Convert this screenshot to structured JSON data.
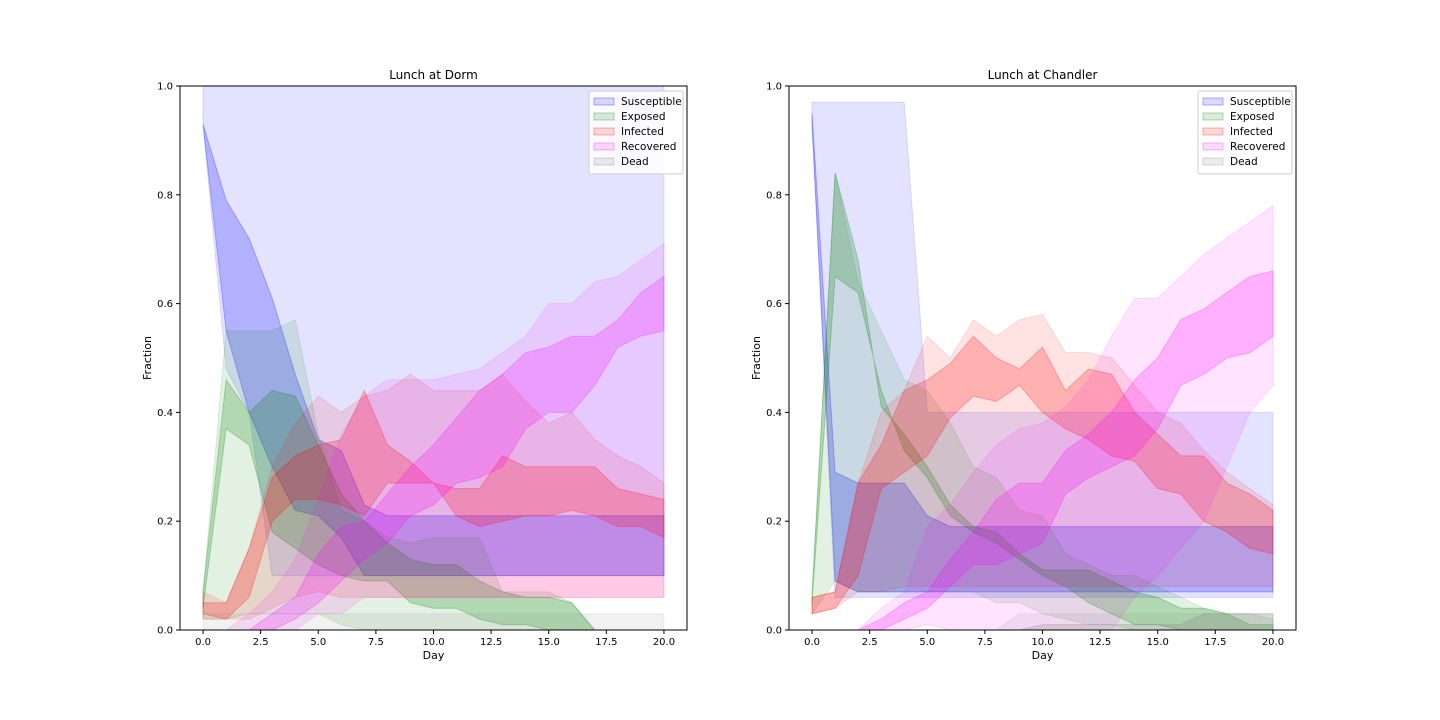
{
  "chart_data": [
    {
      "type": "area",
      "title": "Lunch at Dorm",
      "xlabel": "Day",
      "ylabel": "Fraction",
      "xlim": [
        -1,
        21
      ],
      "ylim": [
        0,
        1
      ],
      "xticks": [
        0,
        2.5,
        5,
        7.5,
        10,
        12.5,
        15,
        17.5,
        20
      ],
      "xtick_labels": [
        "0.0",
        "2.5",
        "5.0",
        "7.5",
        "10.0",
        "12.5",
        "15.0",
        "17.5",
        "20.0"
      ],
      "yticks": [
        0,
        0.2,
        0.4,
        0.6,
        0.8,
        1.0
      ],
      "ytick_labels": [
        "0.0",
        "0.2",
        "0.4",
        "0.6",
        "0.8",
        "1.0"
      ],
      "legend_position": "top-right",
      "x": [
        0,
        1,
        2,
        3,
        4,
        5,
        6,
        7,
        8,
        9,
        10,
        11,
        12,
        13,
        14,
        15,
        16,
        17,
        18,
        19,
        20
      ],
      "series": [
        {
          "name": "Susceptible",
          "color": "#0000ff",
          "outer_high": [
            1,
            1,
            1,
            1,
            1,
            1,
            1,
            1,
            1,
            1,
            1,
            1,
            1,
            1,
            1,
            1,
            1,
            1,
            1,
            1,
            1
          ],
          "outer_low": [
            0.93,
            0.48,
            0.4,
            0.1,
            0.1,
            0.1,
            0.1,
            0.1,
            0.1,
            0.1,
            0.1,
            0.1,
            0.1,
            0.1,
            0.1,
            0.1,
            0.1,
            0.1,
            0.1,
            0.1,
            0.1
          ],
          "inner_high": [
            0.93,
            0.79,
            0.72,
            0.61,
            0.47,
            0.35,
            0.33,
            0.23,
            0.21,
            0.21,
            0.21,
            0.21,
            0.21,
            0.21,
            0.21,
            0.21,
            0.21,
            0.21,
            0.21,
            0.21,
            0.21
          ],
          "inner_low": [
            0.93,
            0.55,
            0.4,
            0.3,
            0.22,
            0.21,
            0.17,
            0.1,
            0.1,
            0.1,
            0.1,
            0.1,
            0.1,
            0.1,
            0.1,
            0.1,
            0.1,
            0.1,
            0.1,
            0.1,
            0.1
          ]
        },
        {
          "name": "Exposed",
          "color": "#008000",
          "outer_high": [
            0.07,
            0.55,
            0.55,
            0.55,
            0.57,
            0.36,
            0.22,
            0.2,
            0.17,
            0.16,
            0.17,
            0.17,
            0.17,
            0.07,
            0.07,
            0.07,
            0.05,
            0,
            0,
            0,
            0
          ],
          "outer_low": [
            0.02,
            0.02,
            0.03,
            0.03,
            0.03,
            0.03,
            0.01,
            0,
            0,
            0,
            0,
            0,
            0,
            0,
            0,
            0,
            0,
            0,
            0,
            0,
            0
          ],
          "inner_high": [
            0.07,
            0.46,
            0.4,
            0.44,
            0.43,
            0.34,
            0.25,
            0.2,
            0.16,
            0.13,
            0.12,
            0.12,
            0.09,
            0.07,
            0.06,
            0.06,
            0.05,
            0,
            0,
            0,
            0
          ],
          "inner_low": [
            0.04,
            0.37,
            0.34,
            0.18,
            0.15,
            0.12,
            0.1,
            0.09,
            0.09,
            0.05,
            0.04,
            0.04,
            0.02,
            0.01,
            0.01,
            0,
            0,
            0,
            0,
            0,
            0
          ]
        },
        {
          "name": "Infected",
          "color": "#ff0000",
          "outer_high": [
            0.07,
            0.05,
            0.15,
            0.3,
            0.38,
            0.43,
            0.4,
            0.43,
            0.44,
            0.47,
            0.44,
            0.44,
            0.44,
            0.47,
            0.42,
            0.38,
            0.4,
            0.35,
            0.32,
            0.3,
            0.27
          ],
          "outer_low": [
            0.02,
            0.02,
            0.02,
            0.04,
            0.06,
            0.07,
            0.06,
            0.06,
            0.06,
            0.06,
            0.06,
            0.06,
            0.06,
            0.06,
            0.06,
            0.06,
            0.06,
            0.06,
            0.06,
            0.06,
            0.06
          ],
          "inner_high": [
            0.05,
            0.05,
            0.15,
            0.28,
            0.32,
            0.34,
            0.35,
            0.44,
            0.34,
            0.31,
            0.27,
            0.26,
            0.26,
            0.32,
            0.3,
            0.3,
            0.3,
            0.3,
            0.26,
            0.25,
            0.24
          ],
          "inner_low": [
            0.03,
            0.02,
            0.06,
            0.2,
            0.24,
            0.24,
            0.23,
            0.21,
            0.27,
            0.27,
            0.27,
            0.21,
            0.19,
            0.2,
            0.21,
            0.21,
            0.22,
            0.21,
            0.19,
            0.19,
            0.17
          ]
        },
        {
          "name": "Recovered",
          "color": "#ff00ff",
          "outer_high": [
            0,
            0,
            0.03,
            0.07,
            0.13,
            0.24,
            0.36,
            0.43,
            0.46,
            0.46,
            0.46,
            0.47,
            0.48,
            0.51,
            0.54,
            0.6,
            0.6,
            0.64,
            0.65,
            0.68,
            0.71
          ],
          "outer_low": [
            0,
            0,
            0,
            0,
            0,
            0.03,
            0.03,
            0.06,
            0.06,
            0.06,
            0.06,
            0.06,
            0.06,
            0.06,
            0.06,
            0.06,
            0.06,
            0.06,
            0.06,
            0.06,
            0.06
          ],
          "inner_high": [
            0,
            0,
            0,
            0.03,
            0.06,
            0.14,
            0.19,
            0.2,
            0.25,
            0.3,
            0.34,
            0.39,
            0.44,
            0.47,
            0.51,
            0.52,
            0.54,
            0.54,
            0.57,
            0.62,
            0.65
          ],
          "inner_low": [
            0,
            0,
            0,
            0,
            0.02,
            0.05,
            0.09,
            0.13,
            0.16,
            0.21,
            0.23,
            0.27,
            0.28,
            0.3,
            0.37,
            0.4,
            0.4,
            0.45,
            0.52,
            0.54,
            0.55
          ]
        },
        {
          "name": "Dead",
          "color": "#808080",
          "outer_high": [
            0.03,
            0.03,
            0.03,
            0.03,
            0.03,
            0.03,
            0.03,
            0.03,
            0.03,
            0.03,
            0.03,
            0.03,
            0.03,
            0.03,
            0.03,
            0.03,
            0.03,
            0.03,
            0.03,
            0.03,
            0.03
          ],
          "outer_low": [
            0,
            0,
            0,
            0,
            0,
            0,
            0,
            0,
            0,
            0,
            0,
            0,
            0,
            0,
            0,
            0,
            0,
            0,
            0,
            0,
            0
          ],
          "inner_high": [
            0,
            0,
            0,
            0,
            0,
            0,
            0,
            0,
            0,
            0,
            0,
            0,
            0,
            0,
            0,
            0,
            0,
            0,
            0,
            0,
            0
          ],
          "inner_low": [
            0,
            0,
            0,
            0,
            0,
            0,
            0,
            0,
            0,
            0,
            0,
            0,
            0,
            0,
            0,
            0,
            0,
            0,
            0,
            0,
            0
          ]
        }
      ]
    },
    {
      "type": "area",
      "title": "Lunch at Chandler",
      "xlabel": "Day",
      "ylabel": "Fraction",
      "xlim": [
        -1,
        21
      ],
      "ylim": [
        0,
        1
      ],
      "xticks": [
        0,
        2.5,
        5,
        7.5,
        10,
        12.5,
        15,
        17.5,
        20
      ],
      "xtick_labels": [
        "0.0",
        "2.5",
        "5.0",
        "7.5",
        "10.0",
        "12.5",
        "15.0",
        "17.5",
        "20.0"
      ],
      "yticks": [
        0,
        0.2,
        0.4,
        0.6,
        0.8,
        1.0
      ],
      "ytick_labels": [
        "0.0",
        "0.2",
        "0.4",
        "0.6",
        "0.8",
        "1.0"
      ],
      "legend_position": "top-right",
      "x": [
        0,
        1,
        2,
        3,
        4,
        5,
        6,
        7,
        8,
        9,
        10,
        11,
        12,
        13,
        14,
        15,
        16,
        17,
        18,
        19,
        20
      ],
      "series": [
        {
          "name": "Susceptible",
          "color": "#0000ff",
          "outer_high": [
            0.97,
            0.97,
            0.97,
            0.97,
            0.97,
            0.4,
            0.4,
            0.4,
            0.4,
            0.4,
            0.4,
            0.4,
            0.4,
            0.4,
            0.4,
            0.4,
            0.4,
            0.4,
            0.4,
            0.4,
            0.4
          ],
          "outer_low": [
            0.93,
            0.06,
            0.06,
            0.06,
            0.06,
            0.06,
            0.06,
            0.06,
            0.06,
            0.06,
            0.06,
            0.06,
            0.06,
            0.06,
            0.06,
            0.06,
            0.06,
            0.06,
            0.06,
            0.06,
            0.06
          ],
          "inner_high": [
            0.95,
            0.29,
            0.27,
            0.27,
            0.27,
            0.21,
            0.19,
            0.19,
            0.19,
            0.19,
            0.19,
            0.19,
            0.19,
            0.19,
            0.19,
            0.19,
            0.19,
            0.19,
            0.19,
            0.19,
            0.19
          ],
          "inner_low": [
            0.93,
            0.09,
            0.07,
            0.07,
            0.07,
            0.07,
            0.07,
            0.07,
            0.07,
            0.07,
            0.07,
            0.07,
            0.07,
            0.07,
            0.07,
            0.07,
            0.07,
            0.07,
            0.07,
            0.07,
            0.07
          ]
        },
        {
          "name": "Exposed",
          "color": "#008000",
          "outer_high": [
            0.07,
            0.84,
            0.64,
            0.55,
            0.46,
            0.44,
            0.38,
            0.3,
            0.28,
            0.22,
            0.21,
            0.14,
            0.12,
            0.1,
            0.1,
            0.08,
            0.06,
            0.04,
            0.03,
            0.03,
            0.02
          ],
          "outer_low": [
            0.03,
            0.09,
            0.07,
            0.07,
            0.07,
            0.07,
            0.07,
            0.07,
            0.05,
            0.05,
            0.03,
            0.02,
            0.01,
            0.01,
            0,
            0,
            0,
            0,
            0,
            0,
            0
          ],
          "inner_high": [
            0.06,
            0.84,
            0.68,
            0.41,
            0.36,
            0.3,
            0.23,
            0.19,
            0.18,
            0.14,
            0.11,
            0.11,
            0.11,
            0.09,
            0.07,
            0.06,
            0.04,
            0.04,
            0.03,
            0.01,
            0.01
          ],
          "inner_low": [
            0.05,
            0.65,
            0.62,
            0.44,
            0.33,
            0.28,
            0.21,
            0.18,
            0.16,
            0.13,
            0.1,
            0.08,
            0.05,
            0.03,
            0.01,
            0.01,
            0,
            0,
            0,
            0,
            0
          ]
        },
        {
          "name": "Infected",
          "color": "#ff0000",
          "outer_high": [
            0.06,
            0.07,
            0.27,
            0.4,
            0.44,
            0.54,
            0.5,
            0.57,
            0.54,
            0.57,
            0.58,
            0.51,
            0.51,
            0.5,
            0.45,
            0.4,
            0.38,
            0.33,
            0.29,
            0.26,
            0.23
          ],
          "outer_low": [
            0.03,
            0.04,
            0.07,
            0.07,
            0.08,
            0.08,
            0.08,
            0.08,
            0.08,
            0.08,
            0.08,
            0.08,
            0.08,
            0.08,
            0.08,
            0.08,
            0.08,
            0.08,
            0.08,
            0.08,
            0.08
          ],
          "inner_high": [
            0.06,
            0.07,
            0.27,
            0.34,
            0.44,
            0.46,
            0.49,
            0.54,
            0.5,
            0.48,
            0.52,
            0.44,
            0.48,
            0.47,
            0.4,
            0.36,
            0.32,
            0.32,
            0.27,
            0.25,
            0.22
          ],
          "inner_low": [
            0.03,
            0.04,
            0.1,
            0.26,
            0.29,
            0.32,
            0.39,
            0.43,
            0.42,
            0.45,
            0.4,
            0.37,
            0.35,
            0.32,
            0.31,
            0.26,
            0.25,
            0.2,
            0.18,
            0.15,
            0.14
          ]
        },
        {
          "name": "Recovered",
          "color": "#ff00ff",
          "outer_high": [
            0,
            0,
            0,
            0.04,
            0.07,
            0.19,
            0.23,
            0.29,
            0.34,
            0.37,
            0.38,
            0.41,
            0.46,
            0.54,
            0.61,
            0.61,
            0.65,
            0.69,
            0.72,
            0.75,
            0.78
          ],
          "outer_low": [
            0,
            0,
            0,
            0,
            0,
            0.01,
            0,
            0,
            0,
            0,
            0,
            0,
            0,
            0,
            0.06,
            0.1,
            0.15,
            0.2,
            0.3,
            0.4,
            0.45
          ],
          "inner_high": [
            0,
            0,
            0,
            0.02,
            0.05,
            0.07,
            0.13,
            0.18,
            0.24,
            0.27,
            0.27,
            0.33,
            0.36,
            0.4,
            0.46,
            0.5,
            0.57,
            0.59,
            0.62,
            0.65,
            0.66
          ],
          "inner_low": [
            0,
            0,
            0,
            0,
            0.02,
            0.04,
            0.08,
            0.12,
            0.12,
            0.14,
            0.16,
            0.25,
            0.28,
            0.3,
            0.32,
            0.37,
            0.45,
            0.47,
            0.5,
            0.51,
            0.54
          ]
        },
        {
          "name": "Dead",
          "color": "#808080",
          "outer_high": [
            0,
            0,
            0,
            0,
            0,
            0,
            0,
            0,
            0,
            0.03,
            0.03,
            0.03,
            0.03,
            0.03,
            0.03,
            0.03,
            0.03,
            0.03,
            0.03,
            0.03,
            0.03
          ],
          "outer_low": [
            0,
            0,
            0,
            0,
            0,
            0,
            0,
            0,
            0,
            0,
            0,
            0,
            0,
            0,
            0,
            0,
            0,
            0,
            0,
            0,
            0
          ],
          "inner_high": [
            0,
            0,
            0,
            0,
            0,
            0,
            0,
            0,
            0,
            0,
            0.01,
            0.01,
            0.01,
            0.01,
            0.01,
            0.01,
            0.01,
            0.03,
            0.03,
            0.03,
            0.03
          ],
          "inner_low": [
            0,
            0,
            0,
            0,
            0,
            0,
            0,
            0,
            0,
            0,
            0,
            0,
            0,
            0,
            0,
            0,
            0,
            0,
            0,
            0,
            0
          ]
        }
      ]
    }
  ]
}
